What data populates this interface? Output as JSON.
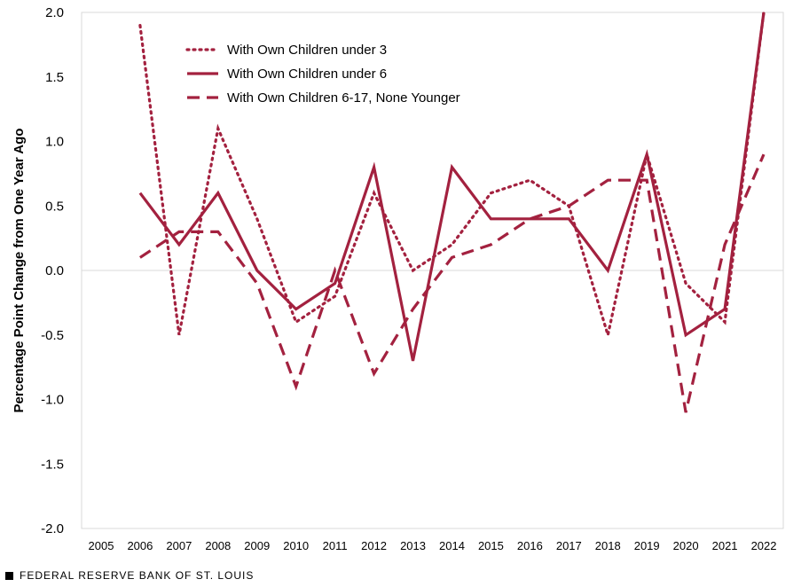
{
  "chart_data": {
    "type": "line",
    "title": "",
    "xlabel": "",
    "ylabel": "Percentage Point Change from One Year Ago",
    "ylim": [
      -2.0,
      2.0
    ],
    "yticks": [
      "2.0",
      "1.5",
      "1.0",
      "0.5",
      "0.0",
      "-0.5",
      "-1.0",
      "-1.5",
      "-2.0"
    ],
    "ytick_values": [
      2.0,
      1.5,
      1.0,
      0.5,
      0.0,
      -0.5,
      -1.0,
      -1.5,
      -2.0
    ],
    "categories": [
      "2005",
      "2006",
      "2007",
      "2008",
      "2009",
      "2010",
      "2011",
      "2012",
      "2013",
      "2014",
      "2015",
      "2016",
      "2017",
      "2018",
      "2019",
      "2020",
      "2021",
      "2022"
    ],
    "legend_position": "top-left",
    "color": "#A3213F",
    "series": [
      {
        "name": "With Own Children under 3",
        "style": "dotted",
        "values": [
          null,
          1.9,
          -0.5,
          1.1,
          0.4,
          -0.4,
          -0.2,
          0.6,
          0.0,
          0.2,
          0.6,
          0.7,
          0.5,
          -0.5,
          0.9,
          -0.1,
          -0.4,
          2.0
        ]
      },
      {
        "name": "With Own Children under 6",
        "style": "solid",
        "values": [
          null,
          0.6,
          0.2,
          0.6,
          0.0,
          -0.3,
          -0.1,
          0.8,
          -0.7,
          0.8,
          0.4,
          0.4,
          0.4,
          0.0,
          0.9,
          -0.5,
          -0.3,
          2.0
        ]
      },
      {
        "name": "With Own Children 6-17, None Younger",
        "style": "dashed",
        "values": [
          null,
          0.1,
          0.3,
          0.3,
          -0.1,
          -0.9,
          0.0,
          -0.8,
          -0.3,
          0.1,
          0.2,
          0.4,
          0.5,
          0.7,
          0.7,
          -1.1,
          0.2,
          0.9
        ]
      }
    ]
  },
  "footer": {
    "source_text": "FEDERAL RESERVE BANK OF ST. LOUIS"
  }
}
